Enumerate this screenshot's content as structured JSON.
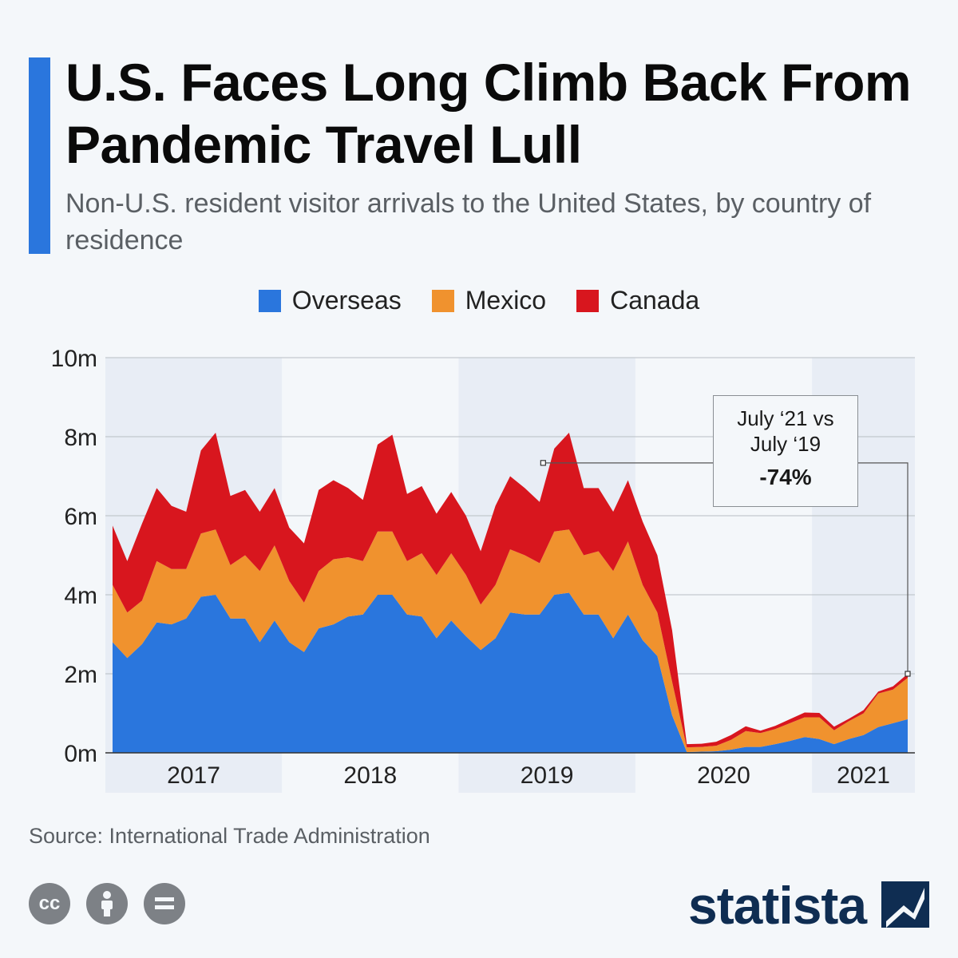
{
  "header": {
    "title": "U.S. Faces Long Climb Back From Pandemic Travel Lull",
    "subtitle": "Non-U.S. resident visitor arrivals to the United States, by country of residence"
  },
  "legend": {
    "items": [
      {
        "label": "Overseas",
        "color": "#2a76dd"
      },
      {
        "label": "Mexico",
        "color": "#f0922e"
      },
      {
        "label": "Canada",
        "color": "#d8161e"
      }
    ]
  },
  "annotation": {
    "line1": "July ‘21 vs",
    "line2": "July ‘19",
    "value": "-74%"
  },
  "footer": {
    "source": "Source: International Trade Administration",
    "brand": "statista",
    "license_icons": [
      "cc-icon",
      "attribution-icon",
      "no-derivatives-icon"
    ]
  },
  "chart_data": {
    "type": "area",
    "stacked": true,
    "x_unit": "month",
    "x": [
      "2017-01",
      "2017-02",
      "2017-03",
      "2017-04",
      "2017-05",
      "2017-06",
      "2017-07",
      "2017-08",
      "2017-09",
      "2017-10",
      "2017-11",
      "2017-12",
      "2018-01",
      "2018-02",
      "2018-03",
      "2018-04",
      "2018-05",
      "2018-06",
      "2018-07",
      "2018-08",
      "2018-09",
      "2018-10",
      "2018-11",
      "2018-12",
      "2019-01",
      "2019-02",
      "2019-03",
      "2019-04",
      "2019-05",
      "2019-06",
      "2019-07",
      "2019-08",
      "2019-09",
      "2019-10",
      "2019-11",
      "2019-12",
      "2020-01",
      "2020-02",
      "2020-03",
      "2020-04",
      "2020-05",
      "2020-06",
      "2020-07",
      "2020-08",
      "2020-09",
      "2020-10",
      "2020-11",
      "2020-12",
      "2021-01",
      "2021-02",
      "2021-03",
      "2021-04",
      "2021-05",
      "2021-06",
      "2021-07"
    ],
    "series": [
      {
        "name": "Overseas",
        "color": "#2a76dd",
        "values": [
          2.8,
          2.4,
          2.75,
          3.3,
          3.25,
          3.4,
          3.95,
          4.0,
          3.4,
          3.4,
          2.8,
          3.35,
          2.8,
          2.55,
          3.15,
          3.25,
          3.45,
          3.5,
          4.0,
          4.0,
          3.5,
          3.45,
          2.9,
          3.35,
          2.95,
          2.6,
          2.9,
          3.55,
          3.5,
          3.5,
          4.0,
          4.05,
          3.5,
          3.5,
          2.9,
          3.5,
          2.85,
          2.45,
          0.95,
          0.02,
          0.03,
          0.04,
          0.08,
          0.15,
          0.15,
          0.22,
          0.3,
          0.4,
          0.35,
          0.22,
          0.35,
          0.45,
          0.65,
          0.75,
          0.85
        ]
      },
      {
        "name": "Mexico",
        "color": "#f0922e",
        "values": [
          1.45,
          1.15,
          1.1,
          1.55,
          1.4,
          1.25,
          1.6,
          1.65,
          1.35,
          1.6,
          1.8,
          1.9,
          1.55,
          1.25,
          1.45,
          1.65,
          1.5,
          1.35,
          1.6,
          1.6,
          1.35,
          1.6,
          1.6,
          1.7,
          1.55,
          1.15,
          1.35,
          1.6,
          1.5,
          1.3,
          1.6,
          1.6,
          1.5,
          1.6,
          1.7,
          1.85,
          1.4,
          1.1,
          0.85,
          0.12,
          0.12,
          0.14,
          0.25,
          0.4,
          0.35,
          0.38,
          0.45,
          0.5,
          0.55,
          0.35,
          0.45,
          0.55,
          0.85,
          0.85,
          1.05
        ]
      },
      {
        "name": "Canada",
        "color": "#d8161e",
        "values": [
          1.5,
          1.3,
          1.95,
          1.85,
          1.6,
          1.45,
          2.1,
          2.45,
          1.75,
          1.65,
          1.5,
          1.45,
          1.35,
          1.5,
          2.05,
          2.0,
          1.75,
          1.55,
          2.2,
          2.45,
          1.7,
          1.7,
          1.55,
          1.55,
          1.5,
          1.35,
          2.0,
          1.85,
          1.7,
          1.55,
          2.1,
          2.45,
          1.7,
          1.6,
          1.5,
          1.55,
          1.6,
          1.45,
          1.3,
          0.08,
          0.08,
          0.1,
          0.12,
          0.12,
          0.06,
          0.08,
          0.1,
          0.12,
          0.11,
          0.09,
          0.06,
          0.08,
          0.05,
          0.08,
          0.1
        ]
      }
    ],
    "y_unit": "m",
    "ylim": [
      0,
      10
    ],
    "yticks": [
      "0m",
      "2m",
      "4m",
      "6m",
      "8m",
      "10m"
    ],
    "year_labels": [
      "2017",
      "2018",
      "2019",
      "2020",
      "2021"
    ],
    "grid": true,
    "legend_position": "top-center"
  }
}
